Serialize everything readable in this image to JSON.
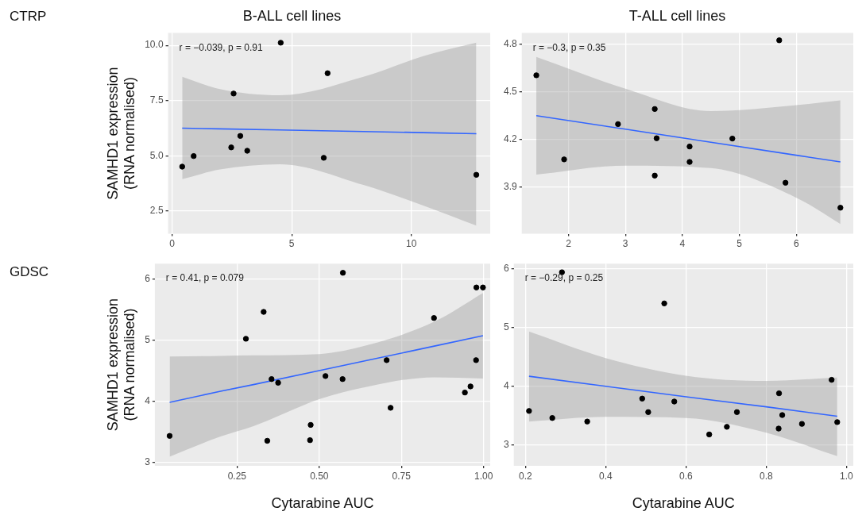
{
  "chart_data": [
    {
      "type": "scatter",
      "title": "B-ALL cell lines",
      "ylabel": "SAMHD1 expression (RNA normalised)",
      "annotations": [
        "CTRP",
        "r = −0.039, p = 0.91"
      ],
      "xlim": [
        -0.17,
        13.3
      ],
      "ylim": [
        1.47,
        10.56
      ],
      "xticks": [
        0,
        5,
        10
      ],
      "yticks": [
        {
          "value": 2.5,
          "label": "2.5"
        },
        {
          "value": 5,
          "label": "5.0"
        },
        {
          "value": 7.5,
          "label": "7.5"
        },
        {
          "value": 10,
          "label": "10.0"
        }
      ],
      "grid": true,
      "series": [
        {
          "marker": "circle",
          "color": "#000000",
          "x": [
            0.42,
            0.9,
            2.47,
            2.57,
            2.85,
            3.14,
            4.54,
            6.34,
            6.5,
            12.72
          ],
          "values": [
            4.51,
            4.99,
            5.38,
            7.82,
            5.9,
            5.23,
            10.12,
            4.91,
            8.74,
            4.14
          ]
        },
        {
          "type": "line",
          "marker": "none",
          "color": "#3366ff",
          "x": [
            0.42,
            2,
            4.5,
            8,
            10.5,
            12.72
          ],
          "values": [
            6.25,
            6.22,
            6.17,
            6.1,
            6.05,
            6.0
          ],
          "lower": [
            3.94,
            4.38,
            4.62,
            3.68,
            2.75,
            1.84
          ],
          "upper": [
            8.58,
            8.02,
            7.74,
            8.58,
            9.51,
            10.12
          ]
        }
      ]
    },
    {
      "type": "scatter",
      "title": "T-ALL cell lines",
      "annotations": [
        "r = −0.3, p = 0.35"
      ],
      "xlim": [
        1.18,
        7
      ],
      "ylim": [
        3.607,
        4.87
      ],
      "xticks": [
        2,
        3,
        4,
        5,
        6
      ],
      "yticks": [
        3.9,
        4.2,
        4.5,
        4.8
      ],
      "grid": true,
      "series": [
        {
          "marker": "circle",
          "color": "#000000",
          "x": [
            1.436,
            1.924,
            2.87,
            3.515,
            3.548,
            3.515,
            4.127,
            4.127,
            4.877,
            5.7,
            5.81,
            6.774
          ],
          "values": [
            4.604,
            4.075,
            4.297,
            4.392,
            4.208,
            3.973,
            4.156,
            4.059,
            4.206,
            4.824,
            3.928,
            3.771
          ]
        },
        {
          "type": "line",
          "marker": "none",
          "color": "#3366ff",
          "x": [
            1.436,
            3,
            4.5,
            6,
            6.774
          ],
          "values": [
            4.35,
            4.265,
            4.183,
            4.101,
            4.059
          ],
          "lower": [
            3.979,
            4.036,
            4.02,
            3.834,
            3.669
          ],
          "upper": [
            4.719,
            4.52,
            4.379,
            4.416,
            4.446
          ]
        }
      ]
    },
    {
      "type": "scatter",
      "xlabel": "Cytarabine AUC",
      "ylabel": "SAMHD1 expression (RNA normalised)",
      "annotations": [
        "GDSC",
        "r = 0.41, p = 0.079"
      ],
      "xlim": [
        0,
        1.02
      ],
      "ylim": [
        2.94,
        6.25
      ],
      "xticks": [
        {
          "value": 0.25,
          "label": "0.25"
        },
        {
          "value": 0.5,
          "label": "0.50"
        },
        {
          "value": 0.75,
          "label": "0.75"
        },
        {
          "value": 1,
          "label": "1.00"
        }
      ],
      "yticks": [
        3,
        4,
        5,
        6
      ],
      "grid": true,
      "series": [
        {
          "marker": "circle",
          "color": "#000000",
          "x": [
            0.045,
            0.277,
            0.331,
            0.342,
            0.355,
            0.375,
            0.474,
            0.472,
            0.519,
            0.572,
            0.571,
            0.705,
            0.717,
            0.849,
            0.943,
            0.96,
            0.977,
            0.978,
            0.998
          ],
          "values": [
            3.43,
            5.02,
            5.46,
            3.35,
            4.36,
            4.3,
            3.61,
            3.36,
            4.41,
            6.1,
            4.36,
            4.67,
            3.89,
            5.36,
            4.14,
            4.24,
            4.67,
            5.86,
            5.86
          ]
        },
        {
          "type": "line",
          "marker": "none",
          "color": "#3366ff",
          "x": [
            0.045,
            0.2,
            0.3,
            0.5,
            0.65,
            0.85,
            0.998
          ],
          "values": [
            3.98,
            4.16,
            4.27,
            4.5,
            4.67,
            4.9,
            5.07
          ],
          "lower": [
            3.09,
            3.42,
            3.59,
            4.03,
            4.24,
            4.39,
            4.37
          ],
          "upper": [
            4.73,
            4.74,
            4.75,
            4.77,
            4.92,
            5.3,
            5.77
          ]
        }
      ]
    },
    {
      "type": "scatter",
      "xlabel": "Cytarabine AUC",
      "annotations": [
        "r = −0.29, p = 0.25"
      ],
      "xlim": [
        0.171,
        1.017
      ],
      "ylim": [
        2.646,
        6.087
      ],
      "xticks": [
        0.2,
        0.4,
        0.6,
        0.8,
        {
          "value": 1,
          "label": "1.0"
        }
      ],
      "yticks": [
        3,
        4,
        5,
        6
      ],
      "grid": true,
      "series": [
        {
          "marker": "circle",
          "color": "#000000",
          "x": [
            0.209,
            0.267,
            0.291,
            0.354,
            0.491,
            0.506,
            0.546,
            0.571,
            0.658,
            0.702,
            0.727,
            0.832,
            0.831,
            0.84,
            0.889,
            0.963,
            0.977
          ],
          "values": [
            3.58,
            3.46,
            5.94,
            3.4,
            3.79,
            3.56,
            5.41,
            3.74,
            3.18,
            3.31,
            3.56,
            3.88,
            3.28,
            3.51,
            3.36,
            4.11,
            3.39
          ]
        },
        {
          "type": "line",
          "marker": "none",
          "color": "#3366ff",
          "x": [
            0.209,
            0.4,
            0.6,
            0.8,
            0.977
          ],
          "values": [
            4.17,
            4.0,
            3.82,
            3.65,
            3.49
          ],
          "lower": [
            3.4,
            3.48,
            3.46,
            3.21,
            2.81
          ],
          "upper": [
            4.93,
            4.48,
            4.18,
            4.09,
            4.15
          ]
        }
      ]
    }
  ]
}
